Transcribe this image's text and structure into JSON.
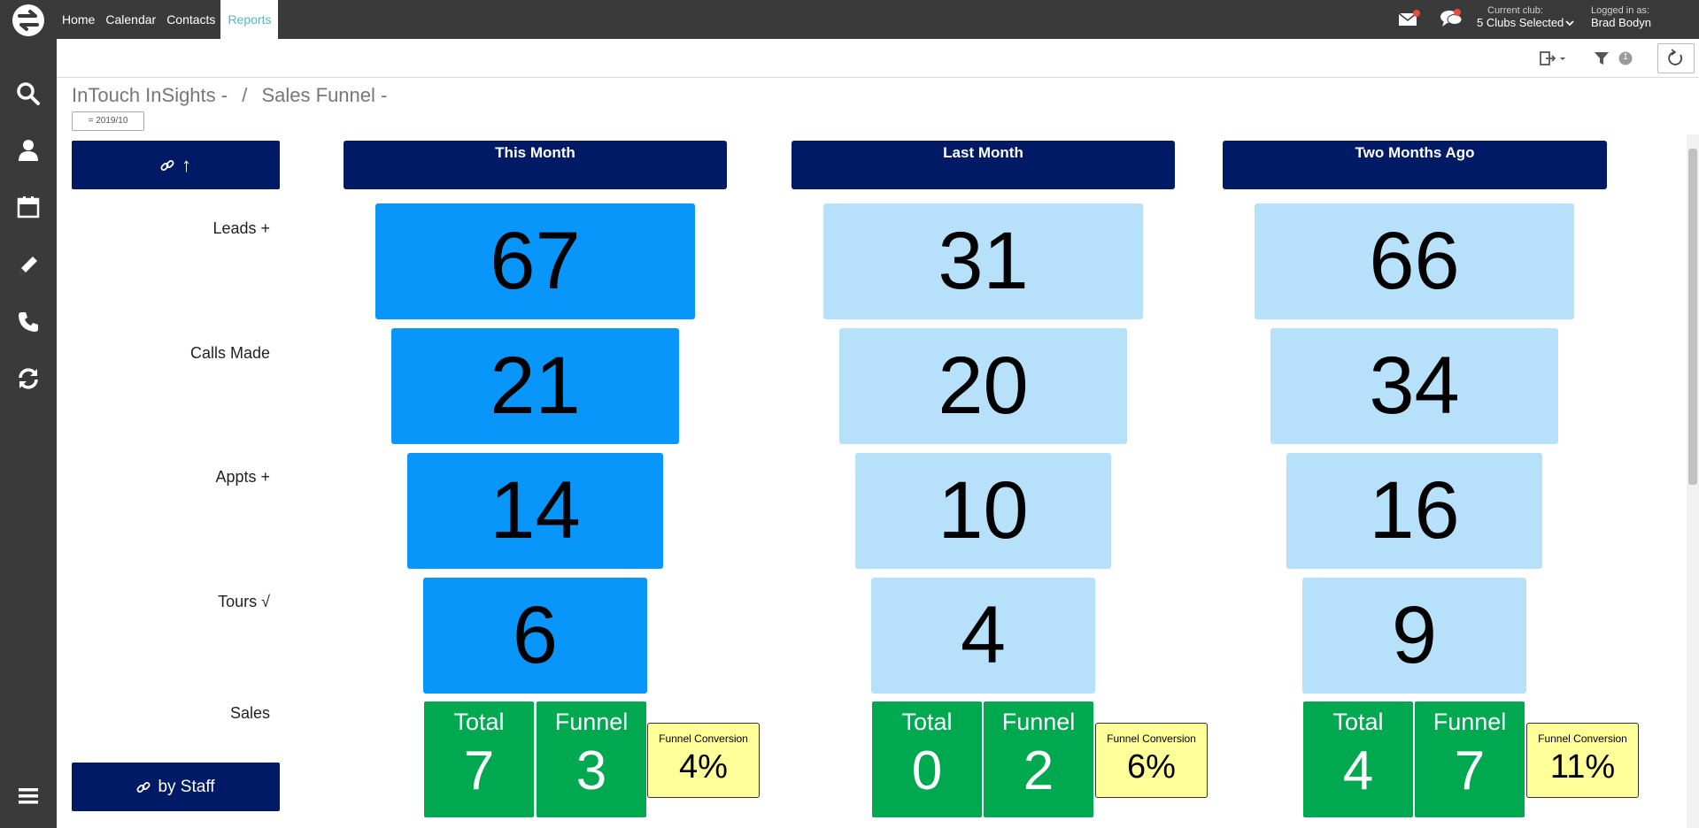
{
  "topbar": {
    "nav": [
      "Home",
      "Calendar",
      "Contacts",
      "Reports"
    ],
    "active_nav": "Reports",
    "current_club_label": "Current club:",
    "current_club_value": "5 Clubs Selected",
    "logged_in_label": "Logged in as:",
    "logged_in_user": "Brad Bodyn"
  },
  "toolbar": {
    "filter_count": "1",
    "icons": [
      "export-icon",
      "filter-icon",
      "refresh-icon",
      "folder-icon"
    ]
  },
  "sidebar": {
    "icons": [
      "search-icon",
      "user-icon",
      "calendar-icon",
      "pencil-icon",
      "phone-icon",
      "sync-icon",
      "menu-icon"
    ]
  },
  "breadcrumb": {
    "part1": "InTouch InSights -",
    "separator": "/",
    "part2": "Sales Funnel -"
  },
  "date_filter": "= 2019/10",
  "buttons": {
    "link_up": "↑",
    "by_staff": "by Staff"
  },
  "row_labels": [
    "Leads +",
    "Calls Made",
    "Appts +",
    "Tours √",
    "Sales"
  ],
  "columns": [
    {
      "header": "This Month",
      "leads": "67",
      "calls": "21",
      "appts": "14",
      "tours": "6",
      "sales_total_label": "Total",
      "sales_total": "7",
      "sales_funnel_label": "Funnel",
      "sales_funnel": "3",
      "conversion_label": "Funnel Conversion",
      "conversion": "4%"
    },
    {
      "header": "Last Month",
      "leads": "31",
      "calls": "20",
      "appts": "10",
      "tours": "4",
      "sales_total_label": "Total",
      "sales_total": "0",
      "sales_funnel_label": "Funnel",
      "sales_funnel": "2",
      "conversion_label": "Funnel Conversion",
      "conversion": "6%"
    },
    {
      "header": "Two Months Ago",
      "leads": "66",
      "calls": "34",
      "appts": "16",
      "tours": "9",
      "sales_total_label": "Total",
      "sales_total": "4",
      "sales_funnel_label": "Funnel",
      "sales_funnel": "7",
      "conversion_label": "Funnel Conversion",
      "conversion": "11%"
    }
  ],
  "colors": {
    "header_navy": "#001a66",
    "this_month_blue": "#0896fb",
    "past_blue": "#b7e1fb",
    "sales_green": "#00a84f",
    "conversion_yellow": "#ffff99",
    "active_nav_teal": "#4fb8c8",
    "notification_red": "#e74c3c"
  }
}
